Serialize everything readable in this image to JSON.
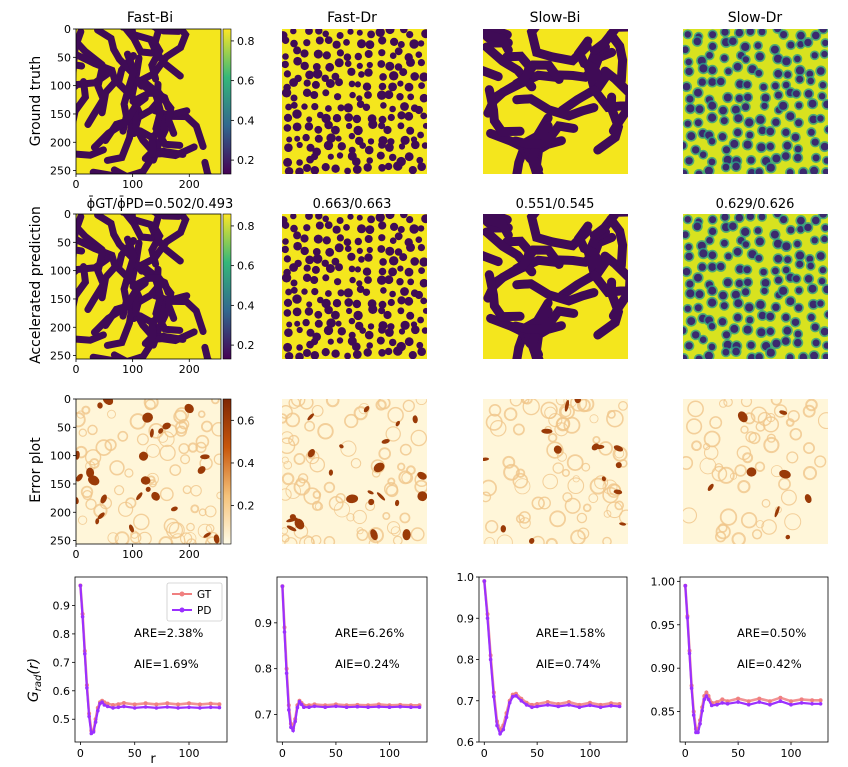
{
  "columns": [
    "Fast-Bi",
    "Fast-Dr",
    "Slow-Bi",
    "Slow-Dr"
  ],
  "rows": [
    "Ground truth",
    "Accelerated prediction",
    "Error plot"
  ],
  "phi_labels": [
    "ϕ̄GT/ϕ̄PD=0.502/0.493",
    "0.663/0.663",
    "0.551/0.545",
    "0.629/0.626"
  ],
  "image_axis": {
    "ticks_x": [
      "0",
      "100",
      "200"
    ],
    "ticks_y": [
      "0",
      "50",
      "100",
      "150",
      "200",
      "250"
    ]
  },
  "colorbars": {
    "viridis": {
      "ticks": [
        "0.8",
        "0.6",
        "0.4",
        "0.2"
      ],
      "colors": [
        "#fde725",
        "#35b779",
        "#31688e",
        "#440154"
      ]
    },
    "error": {
      "ticks": [
        "0.6",
        "0.4",
        "0.2"
      ],
      "colors": [
        "#fffbe6",
        "#f5c27a",
        "#c8570c",
        "#7f2704"
      ]
    }
  },
  "pattern_colors": {
    "bg": "#f4e61d",
    "drop": "#3f0b56",
    "err_bg": "#fff6d9",
    "err_drop": "#9a3a07"
  },
  "chart_data": [
    {
      "type": "line",
      "panel": "Fast-Bi",
      "xlabel": "r",
      "ylabel": "Grad(r)",
      "xlim": [
        -5,
        135
      ],
      "ylim": [
        0.42,
        1.0
      ],
      "xticks": [
        "0",
        "50",
        "100"
      ],
      "yticks": [
        "0.5",
        "0.6",
        "0.7",
        "0.8",
        "0.9"
      ],
      "annotations": [
        "ARE=2.38%",
        "AIE=1.69%"
      ],
      "legend": "top-right",
      "series": [
        {
          "name": "GT",
          "color": "#f08080",
          "x": [
            0,
            2,
            4,
            6,
            8,
            10,
            12,
            14,
            16,
            18,
            20,
            22,
            25,
            30,
            35,
            40,
            50,
            60,
            70,
            80,
            90,
            100,
            110,
            120,
            128
          ],
          "y": [
            0.97,
            0.87,
            0.74,
            0.62,
            0.52,
            0.46,
            0.46,
            0.5,
            0.54,
            0.56,
            0.565,
            0.56,
            0.555,
            0.55,
            0.553,
            0.557,
            0.552,
            0.556,
            0.552,
            0.556,
            0.552,
            0.556,
            0.552,
            0.555,
            0.553
          ]
        },
        {
          "name": "PD",
          "color": "#9b30ff",
          "x": [
            0,
            2,
            4,
            6,
            8,
            10,
            12,
            14,
            16,
            18,
            20,
            22,
            25,
            30,
            35,
            40,
            50,
            60,
            70,
            80,
            90,
            100,
            110,
            120,
            128
          ],
          "y": [
            0.97,
            0.86,
            0.73,
            0.61,
            0.51,
            0.45,
            0.455,
            0.49,
            0.53,
            0.555,
            0.56,
            0.55,
            0.545,
            0.54,
            0.542,
            0.545,
            0.54,
            0.543,
            0.54,
            0.543,
            0.54,
            0.542,
            0.54,
            0.542,
            0.541
          ]
        }
      ]
    },
    {
      "type": "line",
      "panel": "Fast-Dr",
      "xlim": [
        -5,
        135
      ],
      "ylim": [
        0.64,
        1.0
      ],
      "xticks": [
        "0",
        "50",
        "100"
      ],
      "yticks": [
        "0.7",
        "0.8",
        "0.9"
      ],
      "annotations": [
        "ARE=6.26%",
        "AIE=0.24%"
      ],
      "series": [
        {
          "name": "GT",
          "color": "#f08080",
          "x": [
            0,
            2,
            4,
            6,
            8,
            10,
            12,
            14,
            16,
            18,
            20,
            25,
            30,
            40,
            50,
            60,
            70,
            80,
            90,
            100,
            110,
            120,
            128
          ],
          "y": [
            0.98,
            0.89,
            0.8,
            0.72,
            0.68,
            0.67,
            0.69,
            0.72,
            0.73,
            0.725,
            0.72,
            0.72,
            0.722,
            0.72,
            0.722,
            0.72,
            0.721,
            0.72,
            0.722,
            0.72,
            0.721,
            0.72,
            0.72
          ]
        },
        {
          "name": "PD",
          "color": "#9b30ff",
          "x": [
            0,
            2,
            4,
            6,
            8,
            10,
            12,
            14,
            16,
            18,
            20,
            25,
            30,
            40,
            50,
            60,
            70,
            80,
            90,
            100,
            110,
            120,
            128
          ],
          "y": [
            0.98,
            0.88,
            0.79,
            0.71,
            0.672,
            0.665,
            0.685,
            0.715,
            0.728,
            0.722,
            0.716,
            0.716,
            0.718,
            0.716,
            0.718,
            0.716,
            0.717,
            0.716,
            0.717,
            0.716,
            0.717,
            0.716,
            0.716
          ]
        }
      ]
    },
    {
      "type": "line",
      "panel": "Slow-Bi",
      "xlim": [
        -5,
        135
      ],
      "ylim": [
        0.6,
        1.0
      ],
      "xticks": [
        "0",
        "50",
        "100"
      ],
      "yticks": [
        "0.6",
        "0.7",
        "0.8",
        "0.9",
        "1.0"
      ],
      "annotations": [
        "ARE=1.58%",
        "AIE=0.74%"
      ],
      "series": [
        {
          "name": "GT",
          "color": "#f08080",
          "x": [
            0,
            3,
            6,
            9,
            12,
            15,
            18,
            21,
            24,
            27,
            30,
            35,
            40,
            45,
            50,
            60,
            70,
            80,
            90,
            100,
            110,
            120,
            128
          ],
          "y": [
            0.99,
            0.91,
            0.81,
            0.72,
            0.65,
            0.63,
            0.64,
            0.67,
            0.7,
            0.715,
            0.717,
            0.705,
            0.695,
            0.69,
            0.692,
            0.697,
            0.692,
            0.697,
            0.69,
            0.695,
            0.69,
            0.694,
            0.692
          ]
        },
        {
          "name": "PD",
          "color": "#9b30ff",
          "x": [
            0,
            3,
            6,
            9,
            12,
            15,
            18,
            21,
            24,
            27,
            30,
            35,
            40,
            45,
            50,
            60,
            70,
            80,
            90,
            100,
            110,
            120,
            128
          ],
          "y": [
            0.99,
            0.9,
            0.8,
            0.71,
            0.64,
            0.62,
            0.63,
            0.66,
            0.695,
            0.71,
            0.712,
            0.7,
            0.69,
            0.684,
            0.686,
            0.69,
            0.686,
            0.69,
            0.684,
            0.689,
            0.684,
            0.688,
            0.686
          ]
        }
      ]
    },
    {
      "type": "line",
      "panel": "Slow-Dr",
      "xlim": [
        -5,
        135
      ],
      "ylim": [
        0.815,
        1.005
      ],
      "xticks": [
        "0",
        "50",
        "100"
      ],
      "yticks": [
        "0.85",
        "0.90",
        "0.95",
        "1.00"
      ],
      "annotations": [
        "ARE=0.50%",
        "AIE=0.42%"
      ],
      "series": [
        {
          "name": "GT",
          "color": "#f08080",
          "x": [
            0,
            2,
            4,
            6,
            8,
            10,
            12,
            14,
            16,
            18,
            20,
            22,
            25,
            30,
            35,
            40,
            50,
            60,
            70,
            80,
            90,
            100,
            110,
            120,
            128
          ],
          "y": [
            0.995,
            0.96,
            0.92,
            0.88,
            0.85,
            0.83,
            0.83,
            0.84,
            0.855,
            0.868,
            0.872,
            0.868,
            0.86,
            0.861,
            0.864,
            0.862,
            0.865,
            0.862,
            0.865,
            0.862,
            0.866,
            0.862,
            0.864,
            0.863,
            0.863
          ]
        },
        {
          "name": "PD",
          "color": "#9b30ff",
          "x": [
            0,
            2,
            4,
            6,
            8,
            10,
            12,
            14,
            16,
            18,
            20,
            22,
            25,
            30,
            35,
            40,
            50,
            60,
            70,
            80,
            90,
            100,
            110,
            120,
            128
          ],
          "y": [
            0.995,
            0.958,
            0.917,
            0.877,
            0.846,
            0.826,
            0.826,
            0.836,
            0.851,
            0.864,
            0.868,
            0.864,
            0.857,
            0.858,
            0.86,
            0.859,
            0.861,
            0.858,
            0.861,
            0.858,
            0.862,
            0.858,
            0.86,
            0.859,
            0.859
          ]
        }
      ]
    }
  ]
}
